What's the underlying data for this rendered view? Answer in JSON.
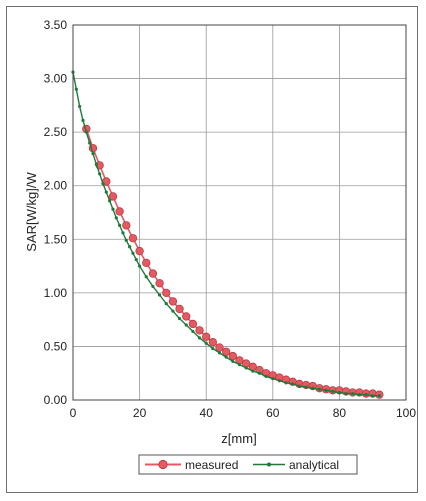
{
  "chart_data": {
    "type": "line",
    "title": "",
    "xlabel": "z[mm]",
    "ylabel": "SAR[W/kg]/W",
    "xlim": [
      0,
      100
    ],
    "ylim": [
      0,
      3.5
    ],
    "x_ticks": [
      "0",
      "20",
      "40",
      "60",
      "80",
      "100"
    ],
    "y_ticks": [
      "0.00",
      "0.50",
      "1.00",
      "1.50",
      "2.00",
      "2.50",
      "3.00",
      "3.50"
    ],
    "grid": true,
    "legend_position": "bottom-center",
    "series": [
      {
        "name": "measured",
        "color": "#e35a63",
        "marker": "circle",
        "x": [
          4,
          6,
          8,
          10,
          12,
          14,
          16,
          18,
          20,
          22,
          24,
          26,
          28,
          30,
          32,
          34,
          36,
          38,
          40,
          42,
          44,
          46,
          48,
          50,
          52,
          54,
          56,
          58,
          60,
          62,
          64,
          66,
          68,
          70,
          72,
          74,
          76,
          78,
          80,
          82,
          84,
          86,
          88,
          90,
          92
        ],
        "values": [
          2.53,
          2.35,
          2.19,
          2.04,
          1.9,
          1.76,
          1.63,
          1.51,
          1.39,
          1.28,
          1.18,
          1.09,
          1.0,
          0.92,
          0.85,
          0.78,
          0.71,
          0.65,
          0.59,
          0.54,
          0.49,
          0.45,
          0.41,
          0.37,
          0.34,
          0.31,
          0.28,
          0.25,
          0.23,
          0.21,
          0.19,
          0.17,
          0.15,
          0.14,
          0.13,
          0.11,
          0.1,
          0.09,
          0.09,
          0.08,
          0.07,
          0.07,
          0.06,
          0.06,
          0.05
        ]
      },
      {
        "name": "analytical",
        "color": "#1f7a3a",
        "marker": "dot",
        "x": [
          0,
          1,
          2,
          3,
          4,
          5,
          6,
          7,
          8,
          9,
          10,
          11,
          12,
          13,
          14,
          15,
          16,
          17,
          18,
          19,
          20,
          22,
          24,
          26,
          28,
          30,
          32,
          34,
          36,
          38,
          40,
          42,
          44,
          46,
          48,
          50,
          52,
          54,
          56,
          58,
          60,
          62,
          64,
          66,
          68,
          70,
          72,
          74,
          76,
          78,
          80,
          82,
          84,
          86,
          88,
          90,
          92
        ],
        "values": [
          3.06,
          2.9,
          2.74,
          2.61,
          2.5,
          2.4,
          2.3,
          2.2,
          2.11,
          2.02,
          1.94,
          1.86,
          1.78,
          1.7,
          1.63,
          1.56,
          1.49,
          1.43,
          1.37,
          1.31,
          1.25,
          1.15,
          1.06,
          0.98,
          0.9,
          0.83,
          0.76,
          0.7,
          0.64,
          0.58,
          0.53,
          0.48,
          0.44,
          0.4,
          0.36,
          0.33,
          0.3,
          0.27,
          0.25,
          0.22,
          0.2,
          0.18,
          0.16,
          0.15,
          0.13,
          0.12,
          0.11,
          0.1,
          0.09,
          0.08,
          0.07,
          0.06,
          0.06,
          0.05,
          0.05,
          0.04,
          0.04
        ]
      }
    ]
  }
}
